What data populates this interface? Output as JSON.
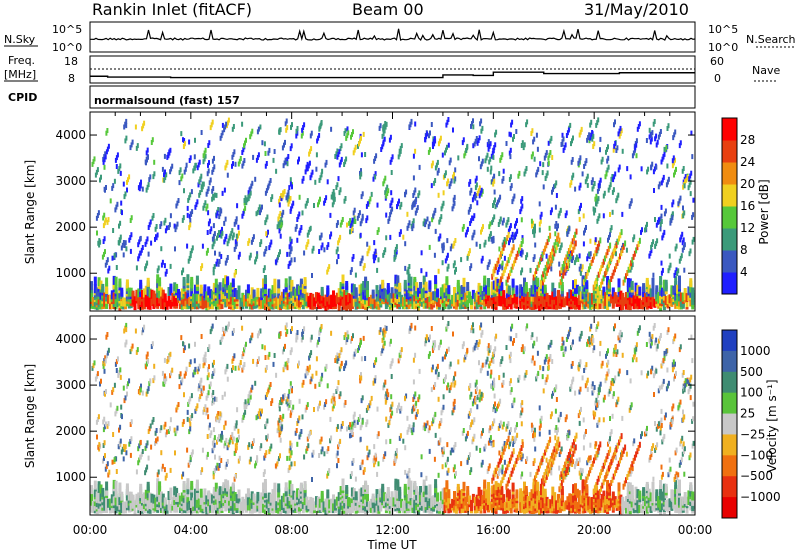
{
  "header": {
    "station": "Rankin Inlet (fitACF)",
    "beam": "Beam 00",
    "date": "31/May/2010"
  },
  "strip_labels": {
    "nsky": "N.Sky",
    "nsky_top": "10^5",
    "nsky_bottom": "10^0",
    "nsearch": "N.Search",
    "nsearch_top": "10^5",
    "nsearch_bottom": "10^0",
    "freq": "Freq.",
    "freq_unit": "[MHz]",
    "freq_top": "18",
    "freq_bottom": "8",
    "nave": "Nave",
    "nave_top": "60",
    "nave_bottom": "0",
    "cpid": "CPID",
    "cpid_text": "normalsound (fast) 157"
  },
  "chart_data": [
    {
      "type": "heatmap",
      "panel": "power",
      "ylabel": "Slant Range [km]",
      "y_ticks": [
        "1000",
        "2000",
        "3000",
        "4000"
      ],
      "ylim": [
        180,
        4500
      ],
      "x_ticks": [
        "00:00",
        "04:00",
        "08:00",
        "12:00",
        "16:00",
        "20:00",
        "00:00"
      ],
      "xlim_hours": [
        0,
        24
      ],
      "colorbar": {
        "label": "Power [dB]",
        "ticks": [
          "4",
          "8",
          "12",
          "16",
          "20",
          "24",
          "28"
        ],
        "colors": [
          "#1f1fff",
          "#3a58c0",
          "#3b9a7a",
          "#56c83a",
          "#f0d020",
          "#f08c10",
          "#e84010",
          "#ff0000"
        ]
      },
      "series": [
        {
          "name": "near-range band",
          "hours": [
            0,
            3,
            6,
            9,
            12,
            16,
            19,
            22,
            24
          ],
          "range_km": [
            800,
            750,
            700,
            800,
            700,
            650,
            750,
            700,
            700
          ]
        },
        {
          "name": "strong echo patches",
          "hours": [
            2.5,
            9.5,
            16.5,
            18.5,
            21.5
          ],
          "power_db": [
            30,
            30,
            28,
            28,
            26
          ]
        }
      ]
    },
    {
      "type": "heatmap",
      "panel": "velocity",
      "ylabel": "Slant Range [km]",
      "xlabel": "Time UT",
      "y_ticks": [
        "1000",
        "2000",
        "3000",
        "4000"
      ],
      "ylim": [
        180,
        4500
      ],
      "x_ticks": [
        "00:00",
        "04:00",
        "08:00",
        "12:00",
        "16:00",
        "20:00",
        "00:00"
      ],
      "xlim_hours": [
        0,
        24
      ],
      "colorbar": {
        "label": "Velocity [m s⁻¹]",
        "ticks": [
          "1000",
          "500",
          "100",
          "25",
          "−25",
          "−100",
          "−500",
          "−1000"
        ],
        "colors": [
          "#2040c0",
          "#3e64a8",
          "#3f8c72",
          "#59c43a",
          "#c8c8c8",
          "#f0b020",
          "#f07010",
          "#e83010",
          "#e80000"
        ]
      },
      "series": [
        {
          "name": "ground scatter band",
          "hours": [
            0,
            6,
            12,
            18,
            24
          ],
          "velocity_ms": [
            0,
            0,
            0,
            0,
            0
          ]
        },
        {
          "name": "negative velocity patch",
          "hours": [
            14,
            16,
            18,
            20
          ],
          "velocity_ms": [
            -100,
            -300,
            -500,
            -300
          ]
        }
      ]
    }
  ]
}
